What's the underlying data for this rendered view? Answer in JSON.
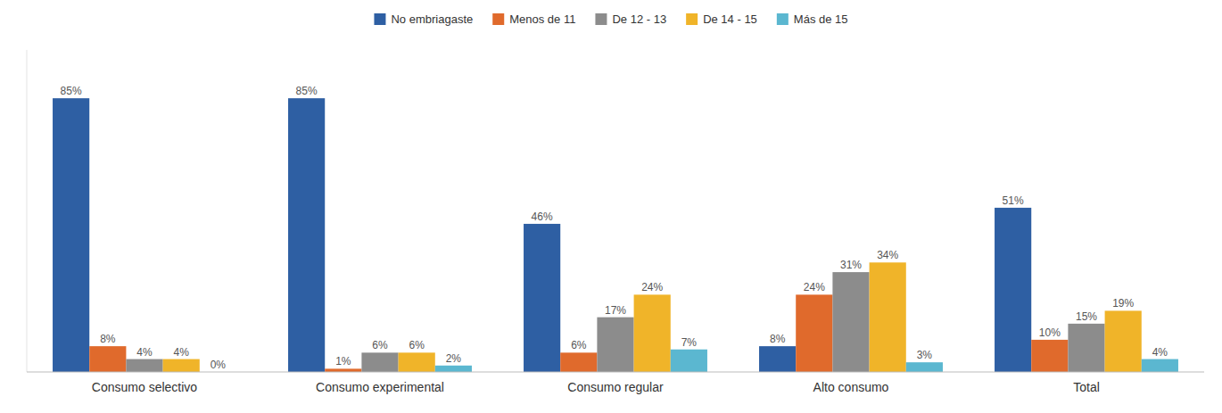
{
  "chart_data": {
    "type": "bar",
    "categories": [
      "Consumo selectivo",
      "Consumo experimental",
      "Consumo regular",
      "Alto consumo",
      "Total"
    ],
    "series": [
      {
        "name": "No embriagaste",
        "color": "#2E5FA3",
        "values": [
          85,
          85,
          46,
          8,
          51
        ],
        "value_labels": [
          "85%",
          "85%",
          "46%",
          "8%",
          "51%"
        ]
      },
      {
        "name": "Menos de 11",
        "color": "#E06A2C",
        "values": [
          8,
          1,
          6,
          24,
          10
        ],
        "value_labels": [
          "8%",
          "1%",
          "6%",
          "24%",
          "10%"
        ]
      },
      {
        "name": "De 12 - 13",
        "color": "#8C8C8C",
        "values": [
          4,
          6,
          17,
          31,
          15
        ],
        "value_labels": [
          "4%",
          "6%",
          "17%",
          "31%",
          "15%"
        ]
      },
      {
        "name": "De 14 - 15",
        "color": "#F0B429",
        "values": [
          4,
          6,
          24,
          34,
          19
        ],
        "value_labels": [
          "4%",
          "6%",
          "24%",
          "34%",
          "19%"
        ]
      },
      {
        "name": "Más de 15",
        "color": "#5BB7D0",
        "values": [
          0,
          2,
          7,
          3,
          4
        ],
        "value_labels": [
          "0%",
          "2%",
          "7%",
          "3%",
          "4%"
        ]
      }
    ],
    "ylim": [
      0,
      100
    ],
    "data_labels": true,
    "tick_labels": "x",
    "legend": "top",
    "grid": false
  }
}
